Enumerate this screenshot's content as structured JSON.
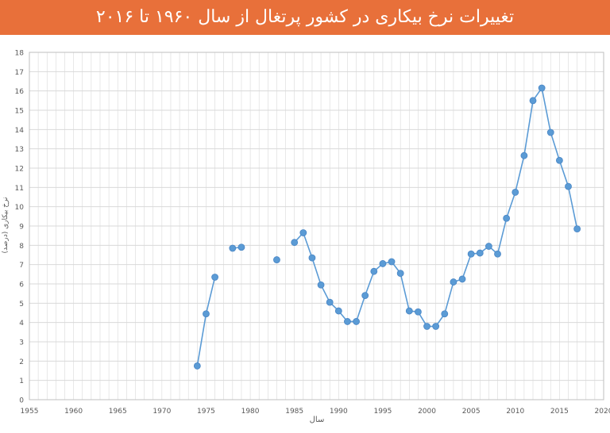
{
  "header": {
    "title": "تغییرات نرخ بیکاری در کشور پرتغال از سال ۱۹۶۰ تا ۲۰۱۶"
  },
  "colors": {
    "banner": "#e8703a",
    "series": "#5b9bd5",
    "grid": "#d9d9d9"
  },
  "chart_data": {
    "type": "line",
    "title": "تغییرات نرخ بیکاری در کشور پرتغال از سال ۱۹۶۰ تا ۲۰۱۶",
    "xlabel": "سال",
    "ylabel": "نرخ بیکاری (درصد)",
    "xlim": [
      1955,
      2020
    ],
    "ylim": [
      0,
      18
    ],
    "xticks": [
      1955,
      1960,
      1965,
      1970,
      1975,
      1980,
      1985,
      1990,
      1995,
      2000,
      2005,
      2010,
      2015,
      2020
    ],
    "yticks": [
      0,
      1,
      2,
      3,
      4,
      5,
      6,
      7,
      8,
      9,
      10,
      11,
      12,
      13,
      14,
      15,
      16,
      17,
      18
    ],
    "grid": true,
    "series": [
      {
        "points": [
          [
            1974,
            1.75
          ],
          [
            1975,
            4.45
          ],
          [
            1976,
            6.35
          ],
          [
            1978,
            7.85
          ],
          [
            1979,
            7.9
          ],
          [
            1983,
            7.25
          ],
          [
            1985,
            8.15
          ],
          [
            1986,
            8.65
          ],
          [
            1987,
            7.35
          ],
          [
            1988,
            5.95
          ],
          [
            1989,
            5.05
          ],
          [
            1990,
            4.6
          ],
          [
            1991,
            4.05
          ],
          [
            1992,
            4.05
          ],
          [
            1993,
            5.4
          ],
          [
            1994,
            6.65
          ],
          [
            1995,
            7.05
          ],
          [
            1996,
            7.15
          ],
          [
            1997,
            6.55
          ],
          [
            1998,
            4.6
          ],
          [
            1999,
            4.55
          ],
          [
            2000,
            3.8
          ],
          [
            2001,
            3.8
          ],
          [
            2002,
            4.45
          ],
          [
            2003,
            6.1
          ],
          [
            2004,
            6.25
          ],
          [
            2005,
            7.55
          ],
          [
            2006,
            7.6
          ],
          [
            2007,
            7.95
          ],
          [
            2008,
            7.55
          ],
          [
            2009,
            9.4
          ],
          [
            2010,
            10.75
          ],
          [
            2011,
            12.65
          ],
          [
            2012,
            15.5
          ],
          [
            2013,
            16.15
          ],
          [
            2014,
            13.85
          ],
          [
            2015,
            12.4
          ],
          [
            2016,
            11.05
          ],
          [
            2017,
            8.85
          ]
        ]
      }
    ]
  }
}
